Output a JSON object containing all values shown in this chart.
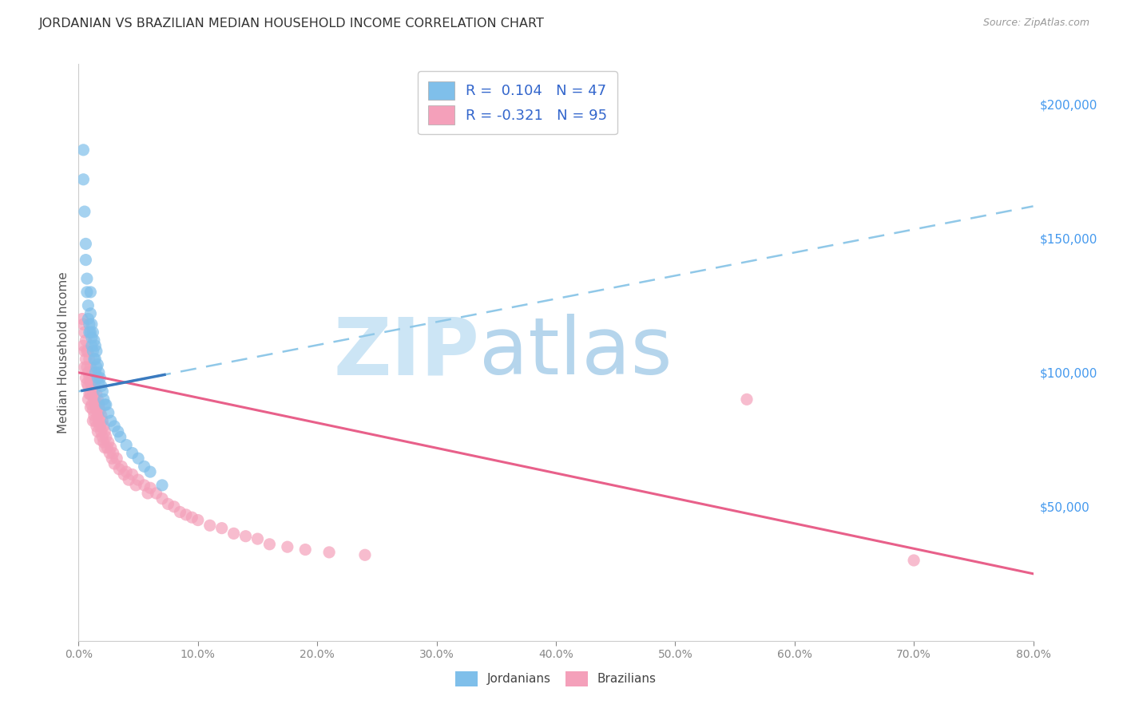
{
  "title": "JORDANIAN VS BRAZILIAN MEDIAN HOUSEHOLD INCOME CORRELATION CHART",
  "source": "Source: ZipAtlas.com",
  "ylabel": "Median Household Income",
  "ytick_labels": [
    "$50,000",
    "$100,000",
    "$150,000",
    "$200,000"
  ],
  "ytick_values": [
    50000,
    100000,
    150000,
    200000
  ],
  "r_jordan": 0.104,
  "n_jordan": 47,
  "r_brazil": -0.321,
  "n_brazil": 95,
  "color_jordan": "#7fbfea",
  "color_brazil": "#f4a0ba",
  "color_jordan_line": "#3a7abf",
  "color_brazil_line": "#e8608a",
  "watermark_zip": "ZIP",
  "watermark_atlas": "atlas",
  "watermark_color_zip": "#cde4f5",
  "watermark_color_atlas": "#b8d8f0",
  "jordan_scatter_x": [
    0.004,
    0.004,
    0.005,
    0.006,
    0.006,
    0.007,
    0.007,
    0.008,
    0.008,
    0.009,
    0.009,
    0.01,
    0.01,
    0.01,
    0.011,
    0.011,
    0.011,
    0.012,
    0.012,
    0.013,
    0.013,
    0.014,
    0.014,
    0.014,
    0.015,
    0.015,
    0.016,
    0.016,
    0.017,
    0.017,
    0.018,
    0.019,
    0.02,
    0.021,
    0.022,
    0.023,
    0.025,
    0.027,
    0.03,
    0.033,
    0.035,
    0.04,
    0.045,
    0.05,
    0.055,
    0.06,
    0.07
  ],
  "jordan_scatter_y": [
    183000,
    172000,
    160000,
    148000,
    142000,
    135000,
    130000,
    125000,
    120000,
    118000,
    115000,
    130000,
    122000,
    115000,
    118000,
    113000,
    110000,
    115000,
    108000,
    112000,
    105000,
    110000,
    105000,
    100000,
    108000,
    102000,
    103000,
    98000,
    100000,
    96000,
    98000,
    95000,
    93000,
    90000,
    88000,
    88000,
    85000,
    82000,
    80000,
    78000,
    76000,
    73000,
    70000,
    68000,
    65000,
    63000,
    58000
  ],
  "brazil_scatter_x": [
    0.003,
    0.004,
    0.004,
    0.005,
    0.005,
    0.005,
    0.006,
    0.006,
    0.006,
    0.007,
    0.007,
    0.007,
    0.008,
    0.008,
    0.008,
    0.008,
    0.009,
    0.009,
    0.009,
    0.01,
    0.01,
    0.01,
    0.01,
    0.011,
    0.011,
    0.011,
    0.012,
    0.012,
    0.012,
    0.012,
    0.013,
    0.013,
    0.013,
    0.014,
    0.014,
    0.014,
    0.015,
    0.015,
    0.015,
    0.016,
    0.016,
    0.016,
    0.017,
    0.017,
    0.018,
    0.018,
    0.018,
    0.019,
    0.019,
    0.02,
    0.02,
    0.021,
    0.021,
    0.022,
    0.022,
    0.023,
    0.024,
    0.025,
    0.026,
    0.027,
    0.028,
    0.029,
    0.03,
    0.032,
    0.034,
    0.036,
    0.038,
    0.04,
    0.042,
    0.045,
    0.048,
    0.05,
    0.055,
    0.058,
    0.06,
    0.065,
    0.07,
    0.075,
    0.08,
    0.085,
    0.09,
    0.095,
    0.1,
    0.11,
    0.12,
    0.13,
    0.14,
    0.15,
    0.16,
    0.175,
    0.19,
    0.21,
    0.24,
    0.56,
    0.7
  ],
  "brazil_scatter_y": [
    120000,
    118000,
    110000,
    115000,
    108000,
    102000,
    112000,
    105000,
    98000,
    108000,
    102000,
    96000,
    108000,
    100000,
    95000,
    90000,
    105000,
    98000,
    92000,
    102000,
    96000,
    92000,
    87000,
    100000,
    95000,
    88000,
    98000,
    92000,
    86000,
    82000,
    96000,
    90000,
    84000,
    94000,
    88000,
    82000,
    92000,
    86000,
    80000,
    90000,
    84000,
    78000,
    88000,
    82000,
    86000,
    80000,
    75000,
    84000,
    78000,
    82000,
    76000,
    80000,
    74000,
    78000,
    72000,
    76000,
    72000,
    74000,
    70000,
    72000,
    68000,
    70000,
    66000,
    68000,
    64000,
    65000,
    62000,
    63000,
    60000,
    62000,
    58000,
    60000,
    58000,
    55000,
    57000,
    55000,
    53000,
    51000,
    50000,
    48000,
    47000,
    46000,
    45000,
    43000,
    42000,
    40000,
    39000,
    38000,
    36000,
    35000,
    34000,
    33000,
    32000,
    90000,
    30000
  ],
  "jordan_line_x": [
    0.0,
    0.8
  ],
  "jordan_line_y": [
    93000,
    162000
  ],
  "brazil_line_x": [
    0.0,
    0.8
  ],
  "brazil_line_y": [
    100000,
    25000
  ],
  "xmin": 0.0,
  "xmax": 0.8,
  "ymin": 0,
  "ymax": 215000,
  "background_color": "#ffffff",
  "grid_color": "#e0e0e0"
}
